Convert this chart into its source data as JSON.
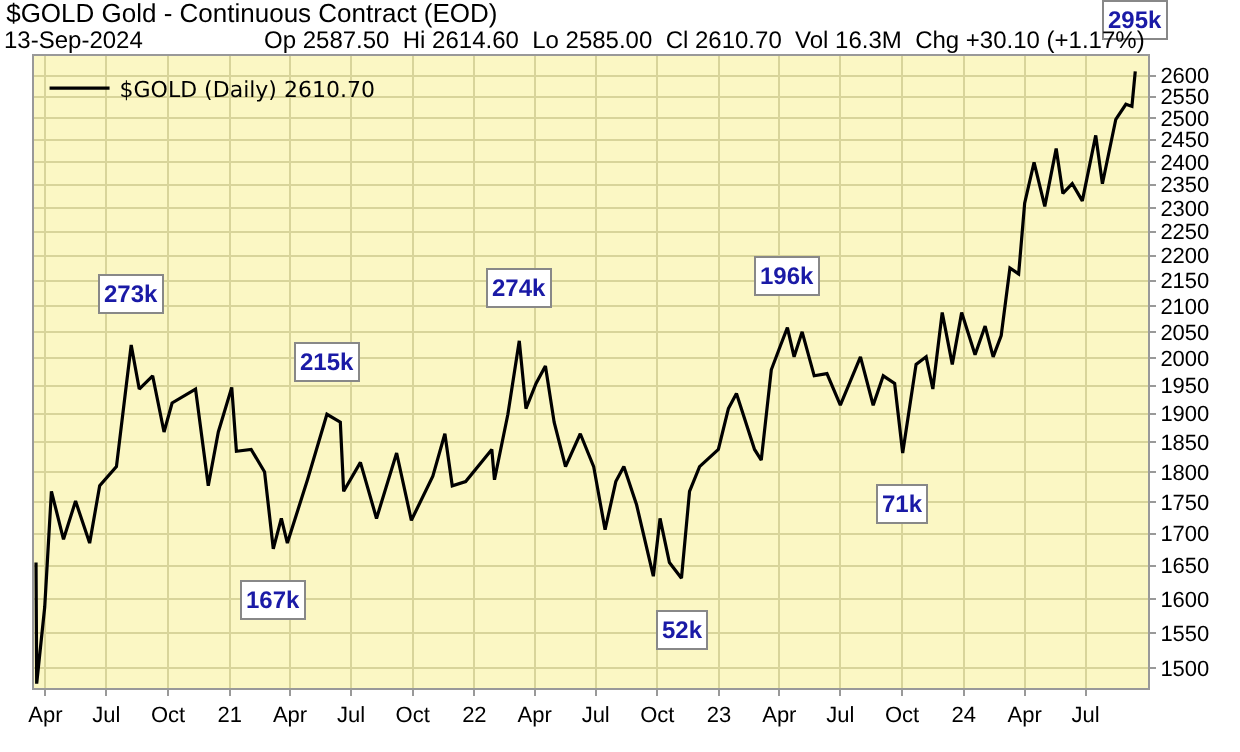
{
  "chart_data": {
    "type": "line",
    "title": "$GOLD Gold - Continuous Contract (EOD)",
    "subtitle": "Op 2587.50  Hi 2614.60  Lo 2585.00  Cl 2610.70  Vol 16.3M  Chg +30.10 (+1.17%)",
    "annotations": [
      "13-Sep-2024",
      {
        "text": "273k",
        "x": "2020-08-07",
        "y": 2025
      },
      {
        "text": "167k",
        "x": "2021-03-07",
        "y": 1676
      },
      {
        "text": "215k",
        "x": "2021-05-26",
        "y": 1899
      },
      {
        "text": "274k",
        "x": "2022-03-09",
        "y": 2033
      },
      {
        "text": "52k",
        "x": "2022-11-06",
        "y": 1631
      },
      {
        "text": "196k",
        "x": "2023-04-13",
        "y": 2058
      },
      {
        "text": "71k",
        "x": "2023-10-02",
        "y": 1832
      },
      {
        "text": "295k",
        "x": "2024-09-13",
        "y": 2610.7
      }
    ],
    "x": [
      "2020-03-18",
      "2020-03-19",
      "2020-03-31",
      "2020-04-10",
      "2020-04-28",
      "2020-05-16",
      "2020-06-06",
      "2020-06-21",
      "2020-07-16",
      "2020-07-31",
      "2020-08-07",
      "2020-08-19",
      "2020-09-08",
      "2020-09-25",
      "2020-10-07",
      "2020-11-11",
      "2020-11-30",
      "2020-12-15",
      "2021-01-04",
      "2021-01-11",
      "2021-02-02",
      "2021-02-22",
      "2021-03-07",
      "2021-03-19",
      "2021-03-28",
      "2021-04-27",
      "2021-05-26",
      "2021-06-15",
      "2021-06-20",
      "2021-07-15",
      "2021-08-08",
      "2021-09-07",
      "2021-09-29",
      "2021-10-31",
      "2021-11-18",
      "2021-11-29",
      "2021-12-19",
      "2022-01-27",
      "2022-01-31",
      "2022-02-20",
      "2022-03-09",
      "2022-03-19",
      "2022-04-03",
      "2022-04-17",
      "2022-04-30",
      "2022-05-17",
      "2022-06-08",
      "2022-06-28",
      "2022-07-15",
      "2022-07-31",
      "2022-08-12",
      "2022-08-31",
      "2022-09-25",
      "2022-10-05",
      "2022-10-19",
      "2022-11-06",
      "2022-11-18",
      "2022-12-03",
      "2022-12-31",
      "2023-01-15",
      "2023-01-27",
      "2023-02-23",
      "2023-03-05",
      "2023-03-20",
      "2023-04-03",
      "2023-04-13",
      "2023-04-23",
      "2023-05-05",
      "2023-05-23",
      "2023-06-11",
      "2023-07-01",
      "2023-07-31",
      "2023-08-19",
      "2023-09-03",
      "2023-09-20",
      "2023-10-02",
      "2023-10-22",
      "2023-11-06",
      "2023-11-16",
      "2023-11-30",
      "2023-12-15",
      "2023-12-29",
      "2024-01-18",
      "2024-02-02",
      "2024-02-14",
      "2024-02-26",
      "2024-03-10",
      "2024-03-23",
      "2024-04-01",
      "2024-04-15",
      "2024-05-01",
      "2024-05-18",
      "2024-05-28",
      "2024-06-11",
      "2024-06-26",
      "2024-07-16",
      "2024-07-26",
      "2024-08-15",
      "2024-08-30",
      "2024-09-08",
      "2024-09-13"
    ],
    "series": [
      {
        "name": "$GOLD (Daily) 2610.70",
        "color": "#000000",
        "values": [
          1655,
          1479,
          1588,
          1768,
          1691,
          1752,
          1685,
          1777,
          1809,
          1954,
          2025,
          1944,
          1968,
          1868,
          1919,
          1944,
          1777,
          1868,
          1947,
          1835,
          1838,
          1800,
          1676,
          1724,
          1685,
          1787,
          1899,
          1885,
          1768,
          1816,
          1724,
          1832,
          1721,
          1793,
          1865,
          1777,
          1784,
          1838,
          1787,
          1899,
          2033,
          1909,
          1954,
          1986,
          1885,
          1809,
          1865,
          1809,
          1706,
          1784,
          1809,
          1746,
          1634,
          1724,
          1655,
          1631,
          1768,
          1809,
          1838,
          1909,
          1936,
          1838,
          1820,
          1979,
          2025,
          2058,
          2003,
          2050,
          1968,
          1972,
          1915,
          2003,
          1915,
          1968,
          1954,
          1832,
          1989,
          2003,
          1944,
          2087,
          1989,
          2087,
          2007,
          2061,
          2003,
          2043,
          2175,
          2163,
          2310,
          2399,
          2303,
          2430,
          2331,
          2352,
          2315,
          2460,
          2352,
          2497,
          2532,
          2527,
          2610.7
        ]
      }
    ],
    "xlim": [
      "2020-03-15",
      "2024-10-02"
    ],
    "xticks": [
      {
        "value": "2020-04-01",
        "label": "Apr"
      },
      {
        "value": "2020-07-01",
        "label": "Jul"
      },
      {
        "value": "2020-10-01",
        "label": "Oct"
      },
      {
        "value": "2021-01-01",
        "label": "21"
      },
      {
        "value": "2021-04-01",
        "label": "Apr"
      },
      {
        "value": "2021-07-01",
        "label": "Jul"
      },
      {
        "value": "2021-10-01",
        "label": "Oct"
      },
      {
        "value": "2022-01-01",
        "label": "22"
      },
      {
        "value": "2022-04-01",
        "label": "Apr"
      },
      {
        "value": "2022-07-01",
        "label": "Jul"
      },
      {
        "value": "2022-10-01",
        "label": "Oct"
      },
      {
        "value": "2023-01-01",
        "label": "23"
      },
      {
        "value": "2023-04-01",
        "label": "Apr"
      },
      {
        "value": "2023-07-01",
        "label": "Jul"
      },
      {
        "value": "2023-10-01",
        "label": "Oct"
      },
      {
        "value": "2024-01-01",
        "label": "24"
      },
      {
        "value": "2024-04-01",
        "label": "Apr"
      },
      {
        "value": "2024-07-01",
        "label": "Jul"
      }
    ],
    "ylim": [
      1473,
      2648
    ],
    "yticks": [
      1500,
      1550,
      1600,
      1650,
      1700,
      1750,
      1800,
      1850,
      1900,
      1950,
      2000,
      2050,
      2100,
      2150,
      2200,
      2250,
      2300,
      2350,
      2400,
      2450,
      2500,
      2550,
      2600
    ],
    "log": "y",
    "grid": true,
    "legend": "top left",
    "marker": "none",
    "line_style": "solid"
  }
}
